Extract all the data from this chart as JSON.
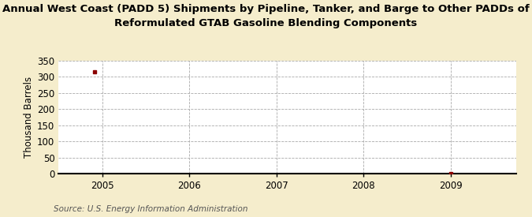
{
  "title_line1": "Annual West Coast (PADD 5) Shipments by Pipeline, Tanker, and Barge to Other PADDs of",
  "title_line2": "Reformulated GTAB Gasoline Blending Components",
  "ylabel": "Thousand Barrels",
  "source": "Source: U.S. Energy Information Administration",
  "x_data": [
    2004.917,
    2009.0
  ],
  "y_data": [
    315,
    1
  ],
  "xlim": [
    2004.5,
    2009.75
  ],
  "ylim": [
    0,
    350
  ],
  "yticks": [
    0,
    50,
    100,
    150,
    200,
    250,
    300,
    350
  ],
  "xticks": [
    2005,
    2006,
    2007,
    2008,
    2009
  ],
  "xtick_labels": [
    "2005",
    "2006",
    "2007",
    "2008",
    "2009"
  ],
  "background_color": "#f5edcc",
  "plot_bg_color": "#ffffff",
  "grid_color": "#aaaaaa",
  "marker_color": "#8b0000",
  "title_fontsize": 9.5,
  "axis_fontsize": 8.5,
  "tick_fontsize": 8.5,
  "source_fontsize": 7.5
}
